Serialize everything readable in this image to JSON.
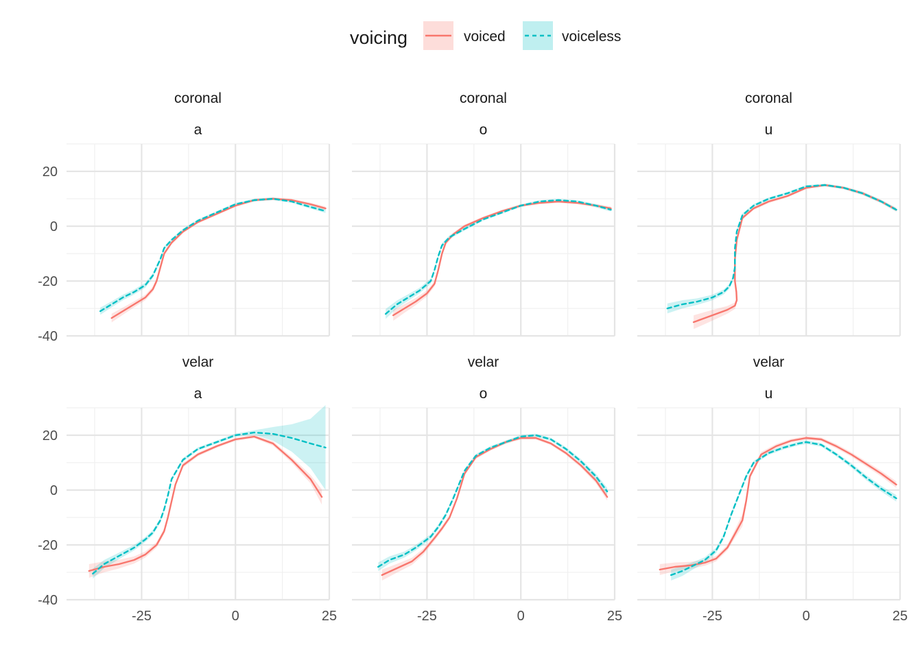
{
  "chart_data": {
    "type": "line",
    "legend": {
      "title": "voicing",
      "position": "top",
      "entries": [
        {
          "label": "voiced",
          "color": "#f8766d",
          "linetype": "solid"
        },
        {
          "label": "voiceless",
          "color": "#00bfc4",
          "linetype": "dashed"
        }
      ]
    },
    "grid": true,
    "xlim": [
      -45,
      25
    ],
    "ylim": [
      -40,
      30
    ],
    "x_ticks": [
      -25,
      0,
      25
    ],
    "y_ticks": [
      -40,
      -20,
      0,
      20
    ],
    "facet_rows": [
      "coronal",
      "velar"
    ],
    "facet_cols": [
      "a",
      "o",
      "u"
    ],
    "panels": [
      {
        "row": "coronal",
        "col": "a",
        "series": [
          {
            "name": "voiced",
            "x": [
              -33,
              -30,
              -27,
              -24,
              -22,
              -21,
              -20,
              -19,
              -17,
              -14,
              -10,
              -5,
              0,
              5,
              10,
              15,
              20,
              24
            ],
            "y": [
              -33.5,
              -31,
              -28.5,
              -26,
              -23,
              -20,
              -15,
              -10,
              -6,
              -2,
              1.5,
              4.5,
              7.5,
              9.5,
              10,
              9.5,
              8,
              6.5
            ],
            "band": [
              1.6,
              1.3,
              1.1,
              1.0,
              1.0,
              1.0,
              0.9,
              0.8,
              0.7,
              0.6,
              0.5,
              0.5,
              0.5,
              0.5,
              0.5,
              0.5,
              0.6,
              0.7
            ]
          },
          {
            "name": "voiceless",
            "x": [
              -36,
              -33,
              -30,
              -27,
              -24,
              -22,
              -20,
              -19,
              -17,
              -14,
              -10,
              -5,
              0,
              5,
              10,
              15,
              20,
              24
            ],
            "y": [
              -31,
              -28.5,
              -26,
              -24,
              -21.5,
              -18,
              -12,
              -8,
              -5,
              -1.5,
              2,
              5,
              8,
              9.5,
              10,
              9,
              7,
              5.5
            ],
            "band": [
              1.3,
              1.1,
              1.0,
              0.9,
              0.9,
              0.9,
              0.8,
              0.7,
              0.6,
              0.6,
              0.5,
              0.5,
              0.5,
              0.5,
              0.5,
              0.5,
              0.6,
              0.7
            ]
          }
        ]
      },
      {
        "row": "coronal",
        "col": "o",
        "series": [
          {
            "name": "voiced",
            "x": [
              -34,
              -31,
              -28,
              -25,
              -23,
              -22,
              -21,
              -20,
              -18,
              -15,
              -10,
              -5,
              0,
              5,
              10,
              15,
              20,
              24
            ],
            "y": [
              -32.5,
              -30,
              -27.5,
              -24.5,
              -21,
              -16,
              -10,
              -6,
              -3,
              0,
              3,
              5.5,
              7.5,
              8.5,
              9,
              8.5,
              7.5,
              6.5
            ],
            "band": [
              2.0,
              1.6,
              1.3,
              1.1,
              1.0,
              1.0,
              0.9,
              0.8,
              0.7,
              0.6,
              0.5,
              0.5,
              0.5,
              0.5,
              0.5,
              0.5,
              0.6,
              0.7
            ]
          },
          {
            "name": "voiceless",
            "x": [
              -36,
              -33,
              -30,
              -27,
              -24,
              -23,
              -22,
              -21,
              -19,
              -15,
              -10,
              -5,
              0,
              5,
              10,
              15,
              20,
              24
            ],
            "y": [
              -32,
              -28.5,
              -26,
              -23.5,
              -20,
              -16,
              -11,
              -7,
              -4,
              -1,
              2.5,
              5,
              7.5,
              9,
              9.5,
              9,
              7.5,
              6
            ],
            "band": [
              1.8,
              1.4,
              1.2,
              1.0,
              1.0,
              0.9,
              0.9,
              0.8,
              0.7,
              0.6,
              0.5,
              0.5,
              0.5,
              0.5,
              0.5,
              0.5,
              0.6,
              0.7
            ]
          }
        ]
      },
      {
        "row": "coronal",
        "col": "u",
        "series": [
          {
            "name": "voiced",
            "x": [
              -30,
              -27,
              -24,
              -21,
              -19,
              -18.5,
              -18.6,
              -19,
              -19,
              -18.5,
              -17,
              -14,
              -10,
              -5,
              0,
              5,
              10,
              15,
              20,
              24
            ],
            "y": [
              -35,
              -33.5,
              -32,
              -30.5,
              -29,
              -27,
              -24,
              -20,
              -12,
              -5,
              3,
              6.5,
              9,
              11,
              14,
              15,
              14,
              12,
              9,
              6
            ],
            "band": [
              2.5,
              2.2,
              1.8,
              1.4,
              1.2,
              1.0,
              0.9,
              0.9,
              0.9,
              0.8,
              0.7,
              0.6,
              0.6,
              0.5,
              0.5,
              0.5,
              0.5,
              0.6,
              0.6,
              0.7
            ]
          },
          {
            "name": "voiceless",
            "x": [
              -37,
              -33,
              -29,
              -25,
              -22,
              -20.5,
              -19.5,
              -19,
              -19,
              -18.5,
              -17,
              -14,
              -10,
              -5,
              0,
              5,
              10,
              15,
              20,
              24
            ],
            "y": [
              -30,
              -28.5,
              -27.5,
              -26,
              -24,
              -22,
              -19,
              -15,
              -8,
              -2,
              4,
              7.5,
              10,
              12,
              14.5,
              15,
              14,
              12,
              9,
              6
            ],
            "band": [
              1.8,
              1.5,
              1.2,
              1.0,
              0.9,
              0.9,
              0.9,
              0.9,
              0.8,
              0.8,
              0.7,
              0.6,
              0.5,
              0.5,
              0.5,
              0.5,
              0.5,
              0.6,
              0.6,
              0.7
            ]
          }
        ]
      },
      {
        "row": "velar",
        "col": "a",
        "series": [
          {
            "name": "voiced",
            "x": [
              -39,
              -35,
              -31,
              -27,
              -24,
              -21,
              -19,
              -18,
              -17,
              -16,
              -14,
              -10,
              -5,
              0,
              5,
              10,
              15,
              20,
              23
            ],
            "y": [
              -29.5,
              -28,
              -27,
              -25.5,
              -23.5,
              -20,
              -15,
              -10,
              -4,
              2,
              9,
              13,
              16,
              18.5,
              19.5,
              17,
              11,
              4,
              -2.5
            ],
            "band": [
              2.5,
              2.0,
              1.6,
              1.3,
              1.1,
              1.0,
              1.0,
              0.9,
              0.9,
              0.8,
              0.8,
              0.7,
              0.6,
              0.6,
              0.6,
              0.8,
              1.0,
              1.5,
              2.8
            ]
          },
          {
            "name": "voiceless",
            "x": [
              -38,
              -35,
              -31,
              -27,
              -24,
              -22,
              -20,
              -19,
              -18,
              -17,
              -14,
              -10,
              -5,
              0,
              5,
              10,
              15,
              20,
              24
            ],
            "y": [
              -30.5,
              -27,
              -24,
              -21,
              -18,
              -15.5,
              -11,
              -7,
              -2,
              4,
              11,
              15,
              17.5,
              20,
              21,
              20.5,
              19,
              17,
              15.5
            ],
            "band": [
              1.8,
              1.5,
              1.2,
              1.0,
              0.9,
              0.9,
              0.9,
              0.8,
              0.8,
              0.7,
              0.7,
              0.6,
              0.6,
              0.6,
              0.8,
              2.5,
              5.0,
              9.0,
              15.5
            ]
          }
        ]
      },
      {
        "row": "velar",
        "col": "o",
        "series": [
          {
            "name": "voiced",
            "x": [
              -37,
              -33,
              -29,
              -26,
              -23,
              -21,
              -19,
              -17,
              -15,
              -12,
              -8,
              -4,
              0,
              4,
              8,
              12,
              16,
              20,
              23
            ],
            "y": [
              -31,
              -28.5,
              -26,
              -22.5,
              -17.5,
              -14,
              -10,
              -3,
              6,
              12,
              15,
              17.5,
              19,
              19,
              17,
              13.5,
              9,
              3.5,
              -2.5
            ],
            "band": [
              2.0,
              1.6,
              1.3,
              1.1,
              1.0,
              0.9,
              0.9,
              0.8,
              0.8,
              0.7,
              0.6,
              0.6,
              0.6,
              0.6,
              0.6,
              0.7,
              0.8,
              1.0,
              1.3
            ]
          },
          {
            "name": "voiceless",
            "x": [
              -38,
              -35,
              -31,
              -28,
              -24,
              -22,
              -20,
              -18,
              -15,
              -12,
              -8,
              -4,
              0,
              4,
              8,
              12,
              16,
              20,
              23
            ],
            "y": [
              -28,
              -25.5,
              -23.5,
              -21,
              -17,
              -13.5,
              -9,
              -3,
              7,
              12.5,
              15.5,
              17.5,
              19.5,
              20,
              18.5,
              15,
              10.5,
              5,
              -0.5
            ],
            "band": [
              1.6,
              1.3,
              1.1,
              1.0,
              0.9,
              0.9,
              0.8,
              0.8,
              0.7,
              0.7,
              0.6,
              0.6,
              0.6,
              0.6,
              0.6,
              0.7,
              0.8,
              1.0,
              1.3
            ]
          }
        ]
      },
      {
        "row": "velar",
        "col": "u",
        "series": [
          {
            "name": "voiced",
            "x": [
              -39,
              -35,
              -31,
              -27,
              -24,
              -21,
              -19,
              -17,
              -16,
              -15,
              -12,
              -8,
              -4,
              0,
              4,
              8,
              12,
              16,
              20,
              24
            ],
            "y": [
              -29,
              -28,
              -27.5,
              -26.5,
              -25,
              -21,
              -16,
              -11,
              -4,
              5,
              13,
              16,
              18,
              19,
              18.5,
              16,
              13,
              9.5,
              6,
              2
            ],
            "band": [
              2.0,
              1.6,
              1.3,
              1.1,
              1.0,
              1.0,
              1.5,
              2.2,
              1.6,
              1.0,
              0.9,
              0.8,
              0.7,
              0.7,
              0.7,
              0.8,
              0.8,
              0.9,
              1.0,
              1.2
            ]
          },
          {
            "name": "voiceless",
            "x": [
              -36,
              -33,
              -30,
              -27,
              -24,
              -22,
              -20,
              -18,
              -16,
              -14,
              -10,
              -6,
              -2,
              0,
              4,
              8,
              12,
              16,
              20,
              24
            ],
            "y": [
              -31,
              -29.5,
              -27.5,
              -25.5,
              -22,
              -17,
              -9,
              -2,
              5,
              10,
              13.5,
              15.5,
              17,
              17.5,
              16.5,
              13,
              9,
              4.5,
              0.5,
              -3
            ],
            "band": [
              2.0,
              1.8,
              1.3,
              1.0,
              1.0,
              0.9,
              0.9,
              0.8,
              0.8,
              0.7,
              0.7,
              0.7,
              0.7,
              0.7,
              0.7,
              0.7,
              0.8,
              0.9,
              1.0,
              1.2
            ]
          }
        ]
      }
    ]
  }
}
